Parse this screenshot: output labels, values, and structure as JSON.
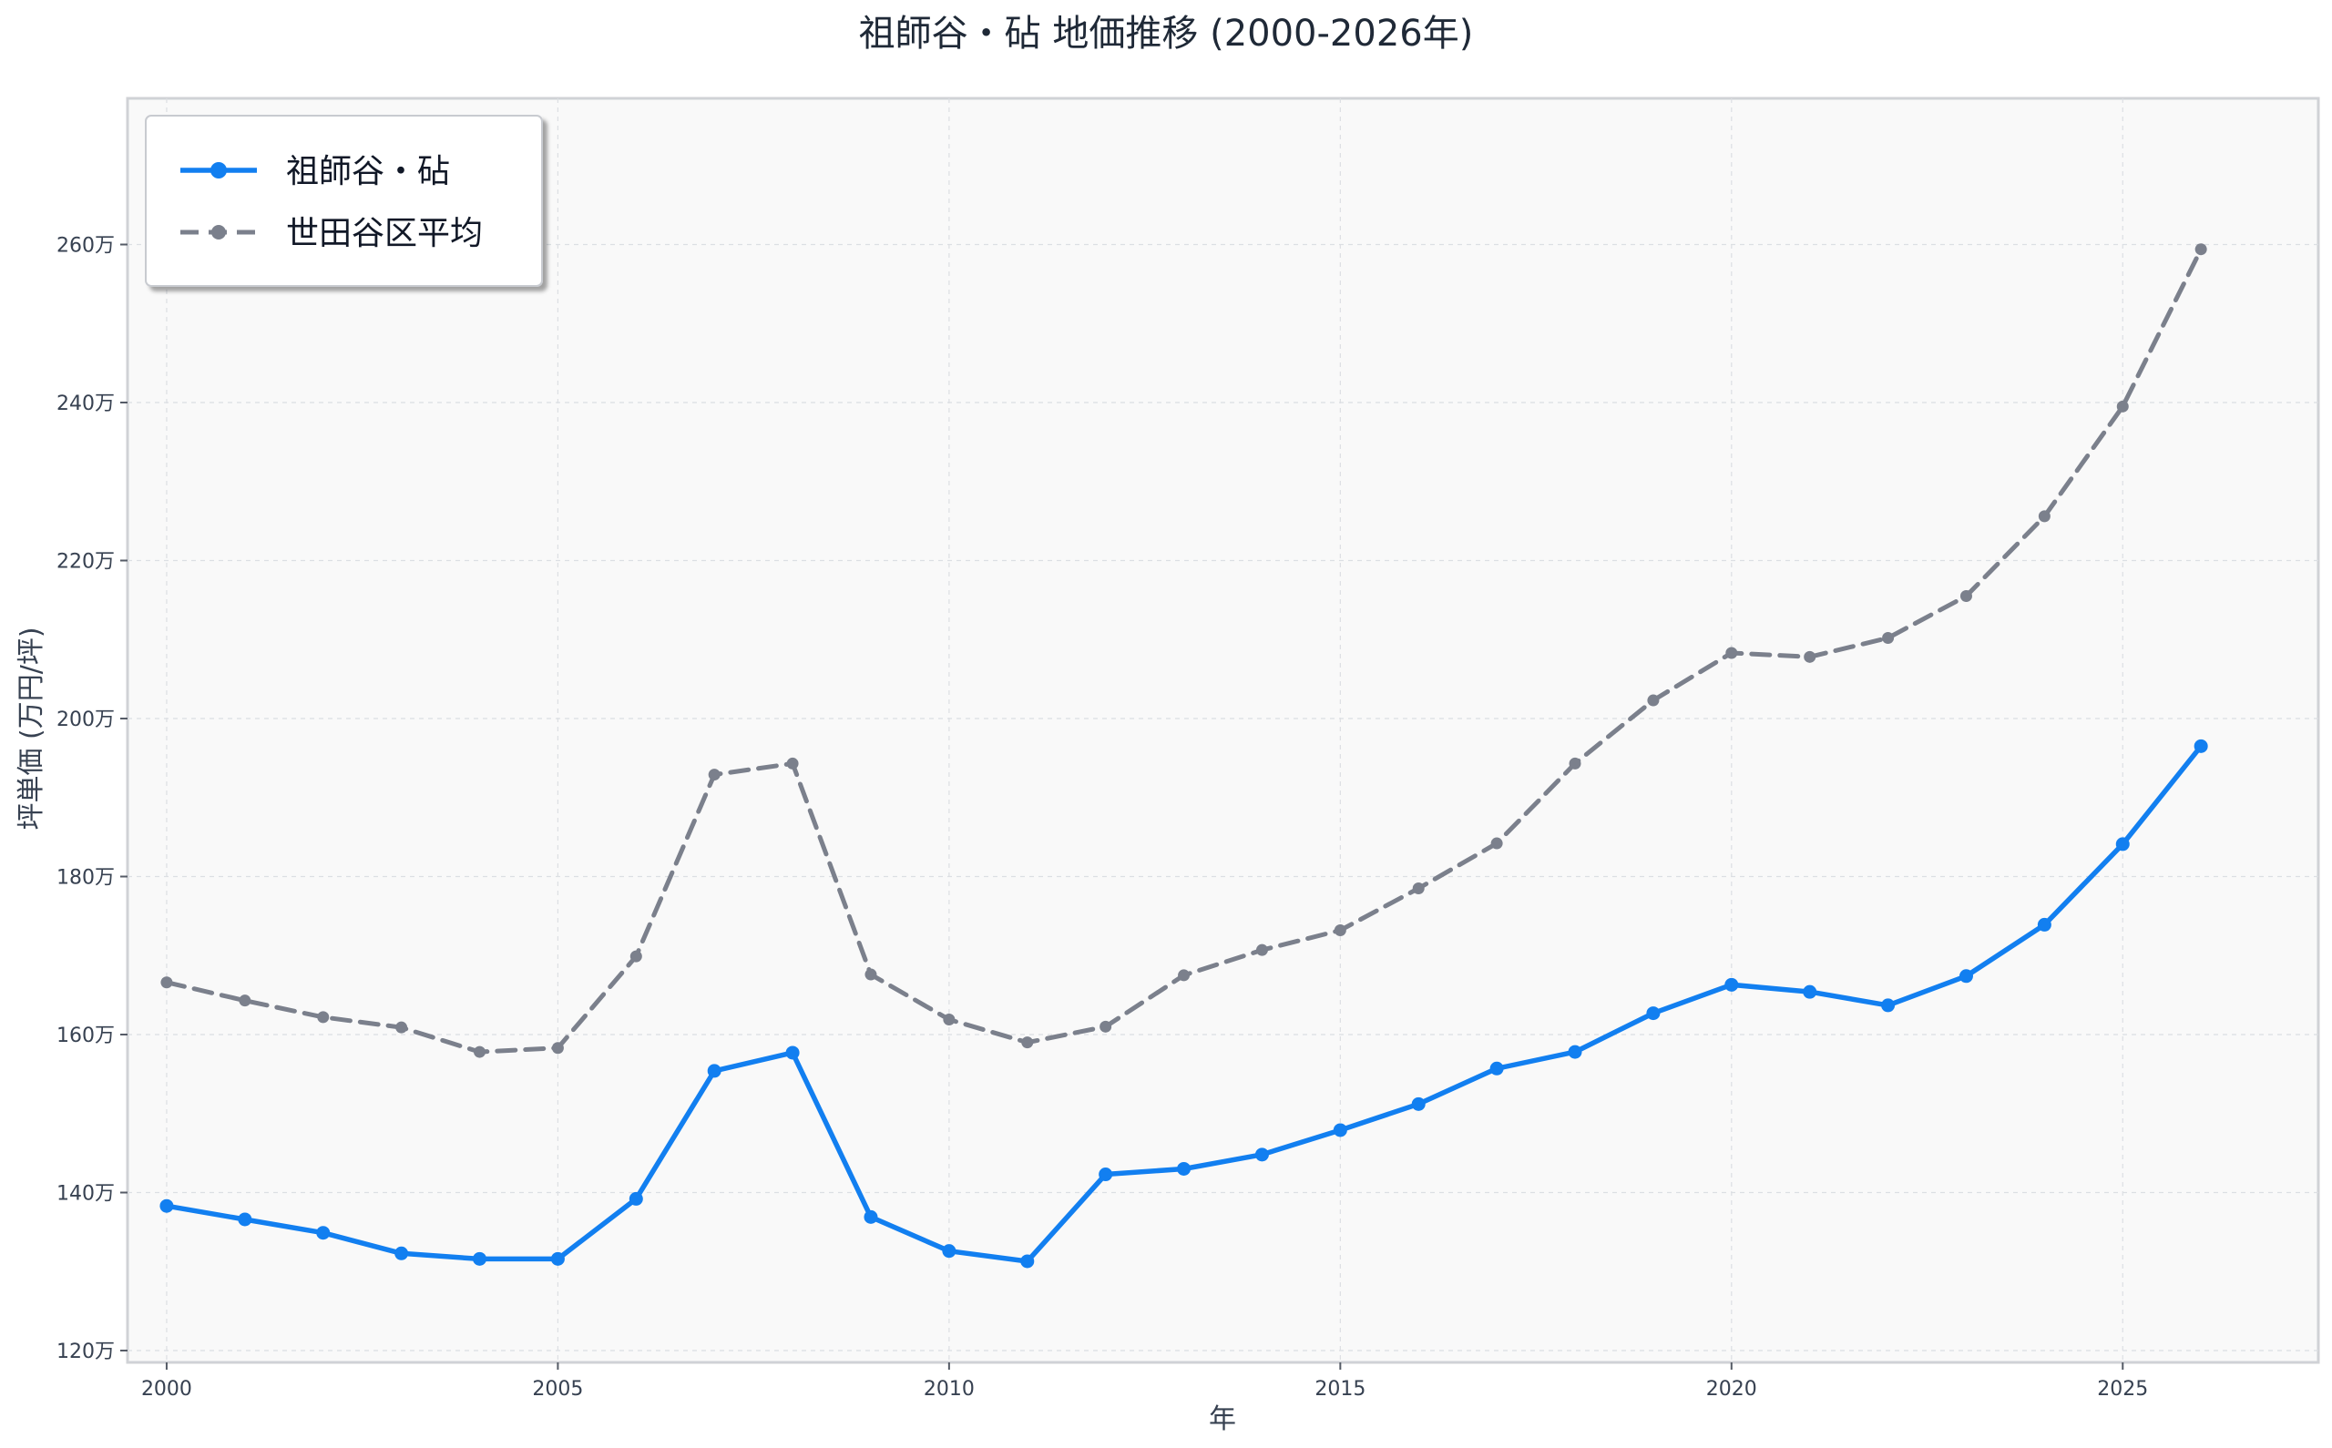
{
  "chart_data": {
    "type": "line",
    "title": "祖師谷・砧 地価推移 (2000-2026年)",
    "xlabel": "年",
    "ylabel": "坪単価 (万円/坪)",
    "x": [
      2000,
      2001,
      2002,
      2003,
      2004,
      2005,
      2006,
      2007,
      2008,
      2009,
      2010,
      2011,
      2012,
      2013,
      2014,
      2015,
      2016,
      2017,
      2018,
      2019,
      2020,
      2021,
      2022,
      2023,
      2024,
      2025,
      2026
    ],
    "series": [
      {
        "name": "祖師谷・砧",
        "color": "#127ff0",
        "style": "solid",
        "values": [
          138.3,
          136.6,
          134.9,
          132.3,
          131.6,
          131.6,
          139.2,
          155.4,
          157.7,
          136.9,
          132.6,
          131.3,
          142.3,
          143.0,
          144.8,
          147.9,
          151.2,
          155.7,
          157.8,
          162.7,
          166.3,
          165.4,
          163.7,
          167.4,
          173.9,
          184.1,
          196.5
        ]
      },
      {
        "name": "世田谷区平均",
        "color": "#7b808c",
        "style": "dashed",
        "values": [
          166.6,
          164.3,
          162.2,
          160.9,
          157.8,
          158.3,
          169.9,
          192.9,
          194.3,
          167.6,
          161.9,
          159.0,
          161.0,
          167.5,
          170.7,
          173.2,
          178.5,
          184.2,
          194.3,
          202.3,
          208.3,
          207.8,
          210.2,
          215.5,
          225.6,
          239.5,
          259.4
        ]
      }
    ],
    "xlim": [
      1999.5,
      2027.5
    ],
    "ylim": [
      118.5,
      278.5
    ],
    "xticks": [
      2000,
      2005,
      2010,
      2015,
      2020,
      2025
    ],
    "yticks": [
      120,
      140,
      160,
      180,
      200,
      220,
      240,
      260
    ],
    "ytick_labels": [
      "120万",
      "140万",
      "160万",
      "180万",
      "200万",
      "220万",
      "240万",
      "260万"
    ],
    "grid": true,
    "legend_position": "top-left"
  }
}
